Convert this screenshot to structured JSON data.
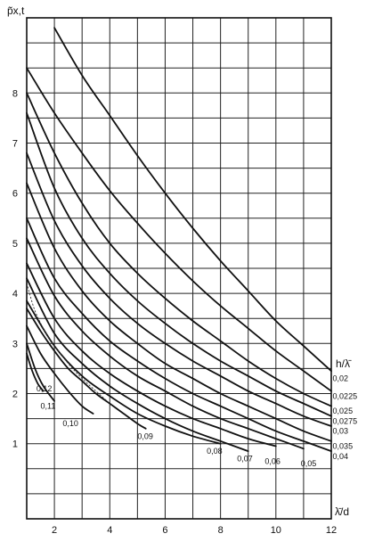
{
  "chart_data": {
    "type": "line",
    "title": "",
    "ylabel": "p̃x,t",
    "xlabel": "λ̄/d",
    "legend_title": "h/λ̄",
    "xlim": [
      1,
      12
    ],
    "ylim": [
      -0.5,
      9.5
    ],
    "x_major_step": 1,
    "y_major_step": 0.5,
    "grid": true,
    "x_ticks": [
      2,
      4,
      6,
      8,
      10,
      12
    ],
    "y_ticks": [
      1,
      2,
      3,
      4,
      5,
      6,
      7,
      8
    ],
    "x_tick_labels": [
      "2",
      "4",
      "6",
      "8",
      "10",
      "12"
    ],
    "y_tick_labels": [
      "1",
      "2",
      "3",
      "4",
      "5",
      "6",
      "7",
      "8"
    ],
    "series": [
      {
        "name": "0,02",
        "x": [
          2.0,
          3.0,
          4.0,
          5.0,
          6.0,
          7.0,
          8.0,
          9.0,
          10.0,
          11.0,
          12.0
        ],
        "y": [
          9.3,
          8.35,
          7.55,
          6.75,
          6.0,
          5.3,
          4.65,
          4.05,
          3.45,
          2.95,
          2.45
        ]
      },
      {
        "name": "0,0225",
        "x": [
          1.0,
          2.0,
          3.0,
          4.0,
          5.0,
          6.0,
          7.0,
          8.0,
          9.0,
          10.0,
          11.0,
          12.0
        ],
        "y": [
          8.5,
          7.6,
          6.8,
          6.05,
          5.4,
          4.8,
          4.25,
          3.75,
          3.3,
          2.85,
          2.45,
          2.05
        ]
      },
      {
        "name": "0,025",
        "x": [
          1.0,
          2.0,
          3.0,
          4.0,
          5.0,
          6.0,
          7.0,
          8.0,
          9.0,
          10.0,
          11.0,
          12.0
        ],
        "y": [
          8.0,
          6.8,
          5.8,
          5.0,
          4.4,
          3.9,
          3.45,
          3.05,
          2.65,
          2.3,
          2.0,
          1.75
        ]
      },
      {
        "name": "0,0275",
        "x": [
          1.0,
          2.0,
          3.0,
          4.0,
          5.0,
          6.0,
          7.0,
          8.0,
          9.0,
          10.0,
          11.0,
          12.0
        ],
        "y": [
          7.6,
          6.1,
          5.1,
          4.4,
          3.85,
          3.4,
          3.0,
          2.65,
          2.35,
          2.05,
          1.8,
          1.55
        ]
      },
      {
        "name": "0,03",
        "x": [
          1.0,
          2.0,
          3.0,
          4.0,
          5.0,
          6.0,
          7.0,
          8.0,
          9.0,
          10.0,
          11.0,
          12.0
        ],
        "y": [
          6.8,
          5.45,
          4.55,
          3.9,
          3.4,
          3.0,
          2.65,
          2.35,
          2.05,
          1.8,
          1.55,
          1.35
        ]
      },
      {
        "name": "0,035",
        "x": [
          1.0,
          2.0,
          3.0,
          4.0,
          5.0,
          6.0,
          7.0,
          8.0,
          9.0,
          10.0,
          11.0,
          12.0
        ],
        "y": [
          6.2,
          4.9,
          4.05,
          3.45,
          3.0,
          2.6,
          2.3,
          2.0,
          1.75,
          1.5,
          1.25,
          1.05
        ]
      },
      {
        "name": "0,04",
        "x": [
          1.0,
          2.0,
          3.0,
          4.0,
          5.0,
          6.0,
          7.0,
          8.0,
          9.0,
          10.0,
          11.0,
          12.0
        ],
        "y": [
          5.5,
          4.3,
          3.6,
          3.05,
          2.65,
          2.3,
          2.0,
          1.75,
          1.5,
          1.25,
          1.05,
          0.85
        ]
      },
      {
        "name": "0,05",
        "x": [
          1.0,
          2.0,
          3.0,
          4.0,
          5.0,
          6.0,
          7.0,
          8.0,
          9.0,
          10.0,
          11.0
        ],
        "y": [
          5.1,
          3.95,
          3.25,
          2.75,
          2.35,
          2.05,
          1.75,
          1.5,
          1.3,
          1.1,
          0.9
        ]
      },
      {
        "name": "0,06",
        "x": [
          1.0,
          2.0,
          3.0,
          4.0,
          5.0,
          6.0,
          7.0,
          8.0,
          9.0,
          10.0
        ],
        "y": [
          4.6,
          3.5,
          2.85,
          2.4,
          2.05,
          1.75,
          1.5,
          1.3,
          1.1,
          0.95
        ]
      },
      {
        "name": "0,07",
        "x": [
          1.0,
          2.0,
          3.0,
          4.0,
          5.0,
          6.0,
          7.0,
          8.0,
          9.0
        ],
        "y": [
          4.3,
          3.2,
          2.6,
          2.15,
          1.8,
          1.5,
          1.25,
          1.05,
          0.85
        ]
      },
      {
        "name": "0,08",
        "x": [
          1.0,
          2.0,
          3.0,
          4.0,
          5.0,
          6.0,
          7.0,
          8.0
        ],
        "y": [
          3.85,
          2.95,
          2.35,
          1.95,
          1.6,
          1.35,
          1.15,
          1.0
        ]
      },
      {
        "name": "0,09",
        "x": [
          1.0,
          1.5,
          2.0,
          2.5,
          3.0,
          3.5,
          4.0,
          4.5,
          5.0,
          5.3
        ],
        "y": [
          3.7,
          3.25,
          2.85,
          2.5,
          2.25,
          2.0,
          1.8,
          1.6,
          1.4,
          1.3
        ]
      },
      {
        "name": "0,10",
        "x": [
          1.0,
          1.5,
          2.0,
          2.5,
          3.0,
          3.4
        ],
        "y": [
          3.35,
          2.8,
          2.4,
          2.05,
          1.75,
          1.6
        ]
      },
      {
        "name": "0,11",
        "x": [
          1.0,
          1.3,
          1.6,
          2.0
        ],
        "y": [
          3.0,
          2.5,
          2.15,
          1.85
        ]
      },
      {
        "name": "0,12",
        "x": [
          1.0,
          1.2,
          1.4,
          1.6
        ],
        "y": [
          2.8,
          2.45,
          2.2,
          2.05
        ]
      },
      {
        "name": "",
        "style": "dotted",
        "x": [
          1.0,
          1.3,
          1.7,
          2.0,
          2.5,
          3.0,
          3.5,
          3.9
        ],
        "y": [
          4.2,
          3.65,
          3.2,
          2.95,
          2.6,
          2.3,
          2.05,
          1.85
        ]
      }
    ],
    "curve_labels": [
      {
        "text": "0,02",
        "x": 12.05,
        "y": 2.3
      },
      {
        "text": "0,0225",
        "x": 12.05,
        "y": 1.95
      },
      {
        "text": "0,025",
        "x": 12.05,
        "y": 1.65
      },
      {
        "text": "0,0275",
        "x": 12.05,
        "y": 1.45
      },
      {
        "text": "0,03",
        "x": 12.05,
        "y": 1.25
      },
      {
        "text": "0,035",
        "x": 12.05,
        "y": 0.95
      },
      {
        "text": "0,04",
        "x": 12.05,
        "y": 0.75
      },
      {
        "text": "0,05",
        "x": 10.9,
        "y": 0.6
      },
      {
        "text": "0,06",
        "x": 9.6,
        "y": 0.65
      },
      {
        "text": "0,07",
        "x": 8.6,
        "y": 0.7
      },
      {
        "text": "0,08",
        "x": 7.5,
        "y": 0.85
      },
      {
        "text": "0,09",
        "x": 5.0,
        "y": 1.15
      },
      {
        "text": "0,10",
        "x": 2.3,
        "y": 1.4
      },
      {
        "text": "0,11",
        "x": 1.5,
        "y": 1.75
      },
      {
        "text": "0,12",
        "x": 1.35,
        "y": 2.1
      }
    ]
  }
}
